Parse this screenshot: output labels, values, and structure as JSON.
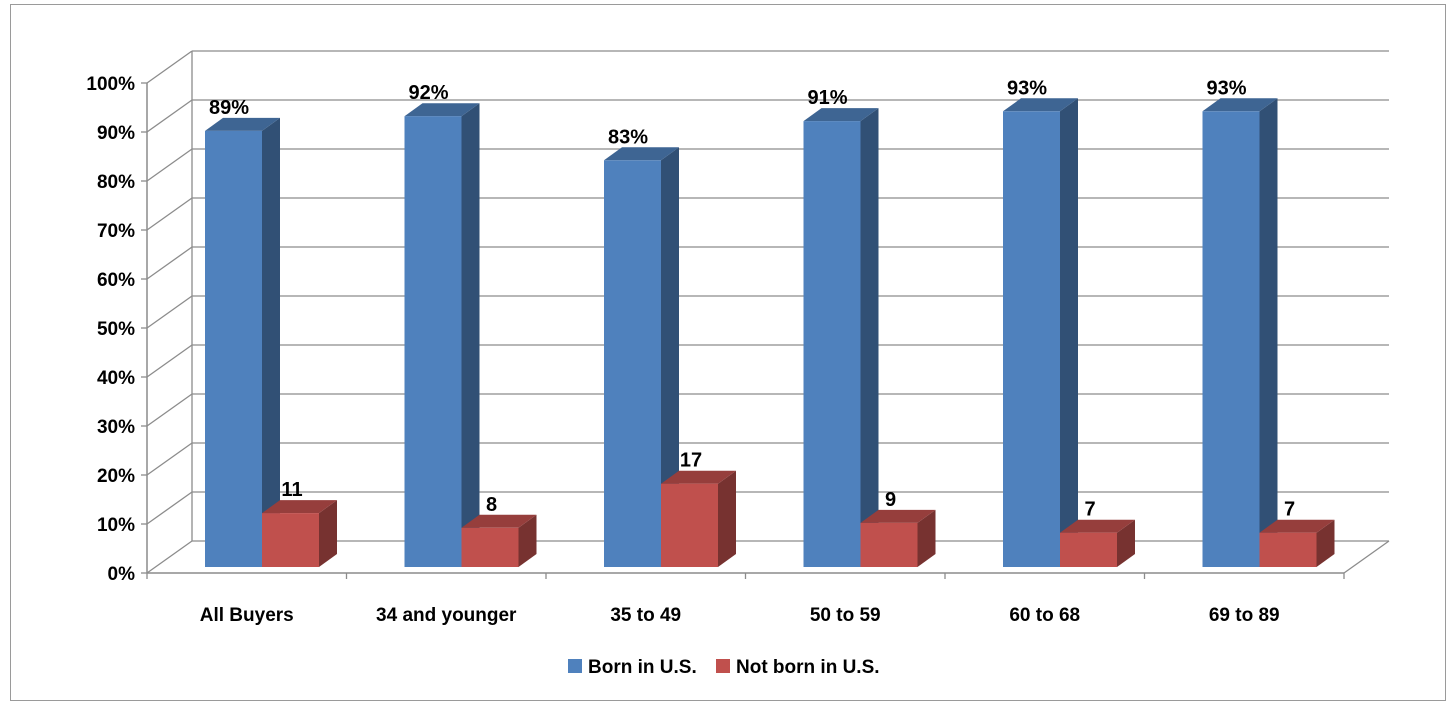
{
  "chart_data": {
    "type": "bar",
    "categories": [
      "All Buyers",
      "34 and younger",
      "35 to 49",
      "50 to 59",
      "60 to 68",
      "69 to 89"
    ],
    "series": [
      {
        "name": "Born in U.S.",
        "values": [
          89,
          92,
          83,
          91,
          93,
          93
        ],
        "labels": [
          "89%",
          "92%",
          "83%",
          "91%",
          "93%",
          "93%"
        ],
        "color": "#4f81bd"
      },
      {
        "name": "Not born in U.S.",
        "values": [
          11,
          8,
          17,
          9,
          7,
          7
        ],
        "labels": [
          "11",
          "8",
          "17",
          "9",
          "7",
          "7"
        ],
        "color": "#c0504d"
      }
    ],
    "ylim": [
      0,
      100
    ],
    "yticks": [
      0,
      10,
      20,
      30,
      40,
      50,
      60,
      70,
      80,
      90,
      100
    ],
    "ytick_labels": [
      "0%",
      "10%",
      "20%",
      "30%",
      "40%",
      "50%",
      "60%",
      "70%",
      "80%",
      "90%",
      "100%"
    ],
    "grid": true,
    "legend_position": "bottom",
    "style": "3d-column"
  }
}
